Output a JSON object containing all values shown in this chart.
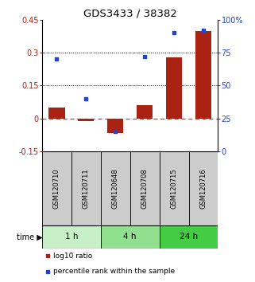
{
  "title": "GDS3433 / 38382",
  "samples": [
    "GSM120710",
    "GSM120711",
    "GSM120648",
    "GSM120708",
    "GSM120715",
    "GSM120716"
  ],
  "log10_ratio": [
    0.05,
    -0.01,
    -0.065,
    0.06,
    0.28,
    0.4
  ],
  "percentile_rank": [
    70,
    40,
    15,
    72,
    90,
    92
  ],
  "ylim_left": [
    -0.15,
    0.45
  ],
  "ylim_right": [
    0,
    100
  ],
  "yticks_left": [
    -0.15,
    0.0,
    0.15,
    0.3,
    0.45
  ],
  "yticks_right": [
    0,
    25,
    50,
    75,
    100
  ],
  "ytick_labels_left": [
    "-0.15",
    "0",
    "0.15",
    "0.3",
    "0.45"
  ],
  "ytick_labels_right": [
    "0",
    "25",
    "50",
    "75",
    "100%"
  ],
  "hlines_dotted": [
    0.15,
    0.3
  ],
  "time_groups": [
    {
      "label": "1 h",
      "start": 0,
      "end": 2,
      "color": "#c8f0c8"
    },
    {
      "label": "4 h",
      "start": 2,
      "end": 4,
      "color": "#90e090"
    },
    {
      "label": "24 h",
      "start": 4,
      "end": 6,
      "color": "#44cc44"
    }
  ],
  "bar_color": "#aa2211",
  "scatter_color": "#2244cc",
  "bar_width": 0.55,
  "zero_line_color": "#cc3333",
  "bg_color": "#ffffff",
  "sample_box_color": "#cccccc",
  "legend_log10": "log10 ratio",
  "legend_pct": "percentile rank within the sample",
  "time_label": "time",
  "title_fontsize": 9.5,
  "tick_fontsize": 7,
  "sample_fontsize": 6,
  "time_fontsize": 7.5,
  "legend_fontsize": 6.5
}
